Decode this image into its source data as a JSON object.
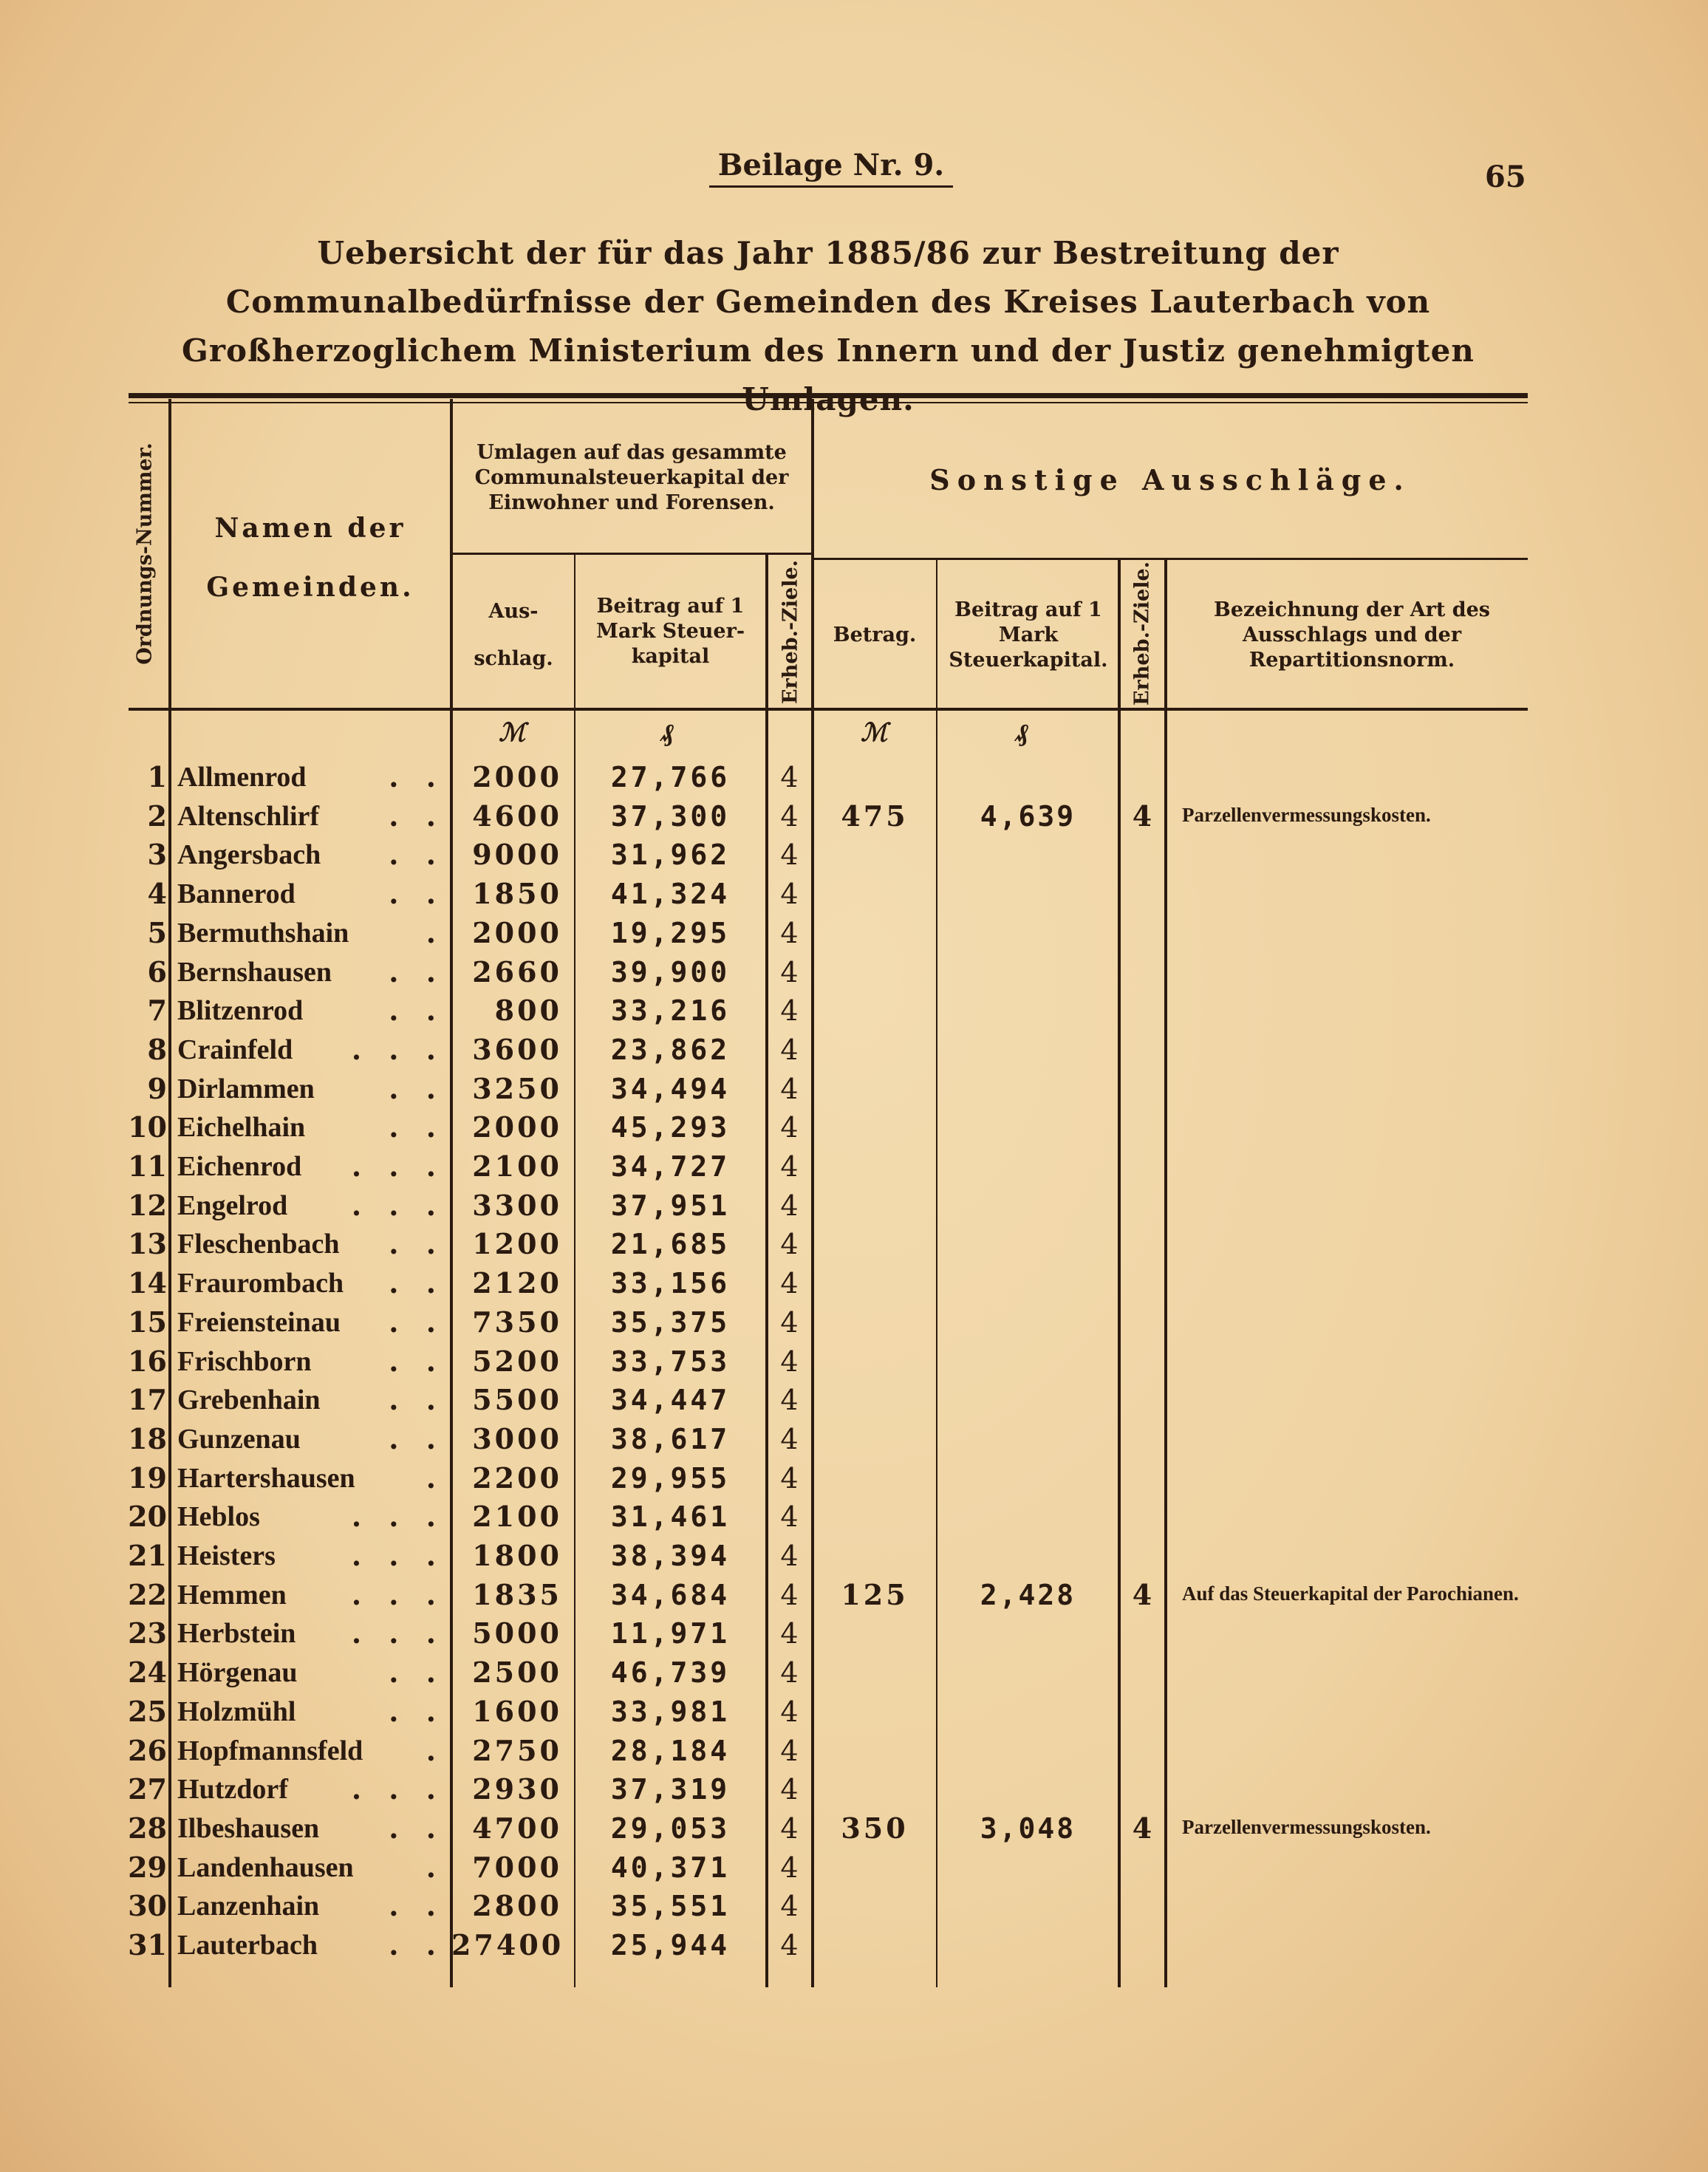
{
  "header": {
    "appendix": "Beilage Nr. 9.",
    "page_number": "65"
  },
  "title": "Uebersicht der für das Jahr 1885/86 zur Bestreitung der Communalbedürfnisse der Gemeinden des Kreises Lauterbach von Großherzoglichem Ministerium des Innern und der Justiz genehmigten Umlagen.",
  "columns": {
    "ordnungs_nummer": "Ordnungs-Nummer.",
    "namen": "Namen der Gemeinden.",
    "umlagen_group": "Umlagen auf das gesammte Communalsteuerkapital der Einwohner und Forensen.",
    "ausschlag": "Aus-schlag.",
    "beitrag": "Beitrag auf 1 Mark Steuer-kapital",
    "erheb_ziele": "Erheb.-Ziele.",
    "sonstige_group": "Sonstige Ausschläge.",
    "betrag": "Betrag.",
    "beitrag2": "Beitrag auf 1 Mark Steuerkapital.",
    "erheb_ziele2": "Erheb.-Ziele.",
    "bezeichnung": "Bezeichnung der Art des Ausschlags und der Repartitionsnorm."
  },
  "units": {
    "mark": "ℳ",
    "pfennig": "₰",
    "mark2": "ℳ",
    "pfennig2": "₰"
  },
  "rows": [
    {
      "nr": "1",
      "name": "Allmenrod",
      "dots": ". .",
      "aus": "2000",
      "beitrag": "27,766",
      "erh": "4"
    },
    {
      "nr": "2",
      "name": "Altenschlirf",
      "dots": ". .",
      "aus": "4600",
      "beitrag": "37,300",
      "erh": "4",
      "betrag2": "475",
      "beitrag2": "4,639",
      "erh2": "4",
      "bez": "Parzellenvermessungskosten."
    },
    {
      "nr": "3",
      "name": "Angersbach",
      "dots": ". .",
      "aus": "9000",
      "beitrag": "31,962",
      "erh": "4"
    },
    {
      "nr": "4",
      "name": "Bannerod",
      "dots": ". .",
      "aus": "1850",
      "beitrag": "41,324",
      "erh": "4"
    },
    {
      "nr": "5",
      "name": "Bermuthshain",
      "dots": ".",
      "aus": "2000",
      "beitrag": "19,295",
      "erh": "4"
    },
    {
      "nr": "6",
      "name": "Bernshausen",
      "dots": ". .",
      "aus": "2660",
      "beitrag": "39,900",
      "erh": "4"
    },
    {
      "nr": "7",
      "name": "Blitzenrod",
      "dots": ". .",
      "aus": "800",
      "beitrag": "33,216",
      "erh": "4"
    },
    {
      "nr": "8",
      "name": "Crainfeld",
      "dots": ". . .",
      "aus": "3600",
      "beitrag": "23,862",
      "erh": "4"
    },
    {
      "nr": "9",
      "name": "Dirlammen",
      "dots": ". .",
      "aus": "3250",
      "beitrag": "34,494",
      "erh": "4"
    },
    {
      "nr": "10",
      "name": "Eichelhain",
      "dots": ". .",
      "aus": "2000",
      "beitrag": "45,293",
      "erh": "4"
    },
    {
      "nr": "11",
      "name": "Eichenrod",
      "dots": ". . .",
      "aus": "2100",
      "beitrag": "34,727",
      "erh": "4"
    },
    {
      "nr": "12",
      "name": "Engelrod",
      "dots": ". . .",
      "aus": "3300",
      "beitrag": "37,951",
      "erh": "4"
    },
    {
      "nr": "13",
      "name": "Fleschenbach",
      "dots": ". .",
      "aus": "1200",
      "beitrag": "21,685",
      "erh": "4"
    },
    {
      "nr": "14",
      "name": "Fraurombach",
      "dots": ". .",
      "aus": "2120",
      "beitrag": "33,156",
      "erh": "4"
    },
    {
      "nr": "15",
      "name": "Freiensteinau",
      "dots": ". .",
      "aus": "7350",
      "beitrag": "35,375",
      "erh": "4"
    },
    {
      "nr": "16",
      "name": "Frischborn",
      "dots": ". .",
      "aus": "5200",
      "beitrag": "33,753",
      "erh": "4"
    },
    {
      "nr": "17",
      "name": "Grebenhain",
      "dots": ". .",
      "aus": "5500",
      "beitrag": "34,447",
      "erh": "4"
    },
    {
      "nr": "18",
      "name": "Gunzenau",
      "dots": ". .",
      "aus": "3000",
      "beitrag": "38,617",
      "erh": "4"
    },
    {
      "nr": "19",
      "name": "Hartershausen",
      "dots": ".",
      "aus": "2200",
      "beitrag": "29,955",
      "erh": "4"
    },
    {
      "nr": "20",
      "name": "Heblos",
      "dots": ". . .",
      "aus": "2100",
      "beitrag": "31,461",
      "erh": "4"
    },
    {
      "nr": "21",
      "name": "Heisters",
      "dots": ". . .",
      "aus": "1800",
      "beitrag": "38,394",
      "erh": "4"
    },
    {
      "nr": "22",
      "name": "Hemmen",
      "dots": ". . .",
      "aus": "1835",
      "beitrag": "34,684",
      "erh": "4",
      "betrag2": "125",
      "beitrag2": "2,428",
      "erh2": "4",
      "bez": "Auf das Steuerkapital der Parochianen."
    },
    {
      "nr": "23",
      "name": "Herbstein",
      "dots": ". . .",
      "aus": "5000",
      "beitrag": "11,971",
      "erh": "4"
    },
    {
      "nr": "24",
      "name": "Hörgenau",
      "dots": ". .",
      "aus": "2500",
      "beitrag": "46,739",
      "erh": "4"
    },
    {
      "nr": "25",
      "name": "Holzmühl",
      "dots": ". .",
      "aus": "1600",
      "beitrag": "33,981",
      "erh": "4"
    },
    {
      "nr": "26",
      "name": "Hopfmannsfeld",
      "dots": ".",
      "aus": "2750",
      "beitrag": "28,184",
      "erh": "4"
    },
    {
      "nr": "27",
      "name": "Hutzdorf",
      "dots": ". . .",
      "aus": "2930",
      "beitrag": "37,319",
      "erh": "4"
    },
    {
      "nr": "28",
      "name": "Ilbeshausen",
      "dots": ". .",
      "aus": "4700",
      "beitrag": "29,053",
      "erh": "4",
      "betrag2": "350",
      "beitrag2": "3,048",
      "erh2": "4",
      "bez": "Parzellenvermessungskosten."
    },
    {
      "nr": "29",
      "name": "Landenhausen",
      "dots": ".",
      "aus": "7000",
      "beitrag": "40,371",
      "erh": "4"
    },
    {
      "nr": "30",
      "name": "Lanzenhain",
      "dots": ". .",
      "aus": "2800",
      "beitrag": "35,551",
      "erh": "4"
    },
    {
      "nr": "31",
      "name": "Lauterbach",
      "dots": ". .",
      "aus": "27400",
      "beitrag": "25,944",
      "erh": "4"
    }
  ]
}
